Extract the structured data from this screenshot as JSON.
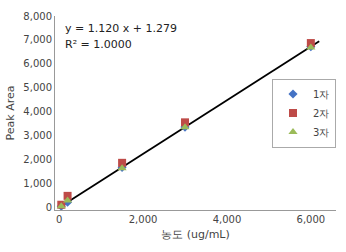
{
  "chart_data": {
    "type": "scatter",
    "xlabel": "농도 (ug/mL)",
    "ylabel": "Peak Area",
    "annotations": [
      "y = 1.120 x + 1.279",
      "R² = 1.0000"
    ],
    "xlim": [
      -100,
      6600
    ],
    "ylim": [
      -100,
      8000
    ],
    "xticks": [
      0,
      {
        "value": 2000,
        "label": "2,000"
      },
      {
        "value": 4000,
        "label": "4,000"
      },
      {
        "value": 6000,
        "label": "6,000"
      }
    ],
    "yticks": [
      0,
      {
        "value": 1000,
        "label": "1,000"
      },
      {
        "value": 2000,
        "label": "2,000"
      },
      {
        "value": 3000,
        "label": "3,000"
      },
      {
        "value": 4000,
        "label": "4,000"
      },
      {
        "value": 5000,
        "label": "5,000"
      },
      {
        "value": 6000,
        "label": "6,000"
      },
      {
        "value": 7000,
        "label": "7,000"
      },
      {
        "value": 8000,
        "label": "8,000"
      }
    ],
    "grid": false,
    "legend": "right",
    "series": [
      {
        "type": "line",
        "color": "black",
        "line_style": "solid",
        "x": [
          0,
          6200
        ],
        "values": [
          1.279,
          6945.279
        ]
      },
      {
        "name": "1자",
        "type": "scatter",
        "color": "#4472C4",
        "marker": "diamond",
        "x": [
          50,
          200,
          1500,
          3000,
          6000
        ],
        "values": [
          57,
          225,
          1681,
          3361,
          6721
        ]
      },
      {
        "name": "2자",
        "type": "scatter",
        "color": "#BE4B48",
        "marker": "square",
        "x": [
          50,
          200,
          1500,
          3000,
          6000
        ],
        "values": [
          120,
          490,
          1870,
          3560,
          6870
        ]
      },
      {
        "name": "3자",
        "type": "scatter",
        "color": "#9BBB59",
        "marker": "triangle-up",
        "x": [
          50,
          200,
          1500,
          3000,
          6000
        ],
        "values": [
          57,
          300,
          1640,
          3360,
          6680
        ]
      }
    ]
  }
}
